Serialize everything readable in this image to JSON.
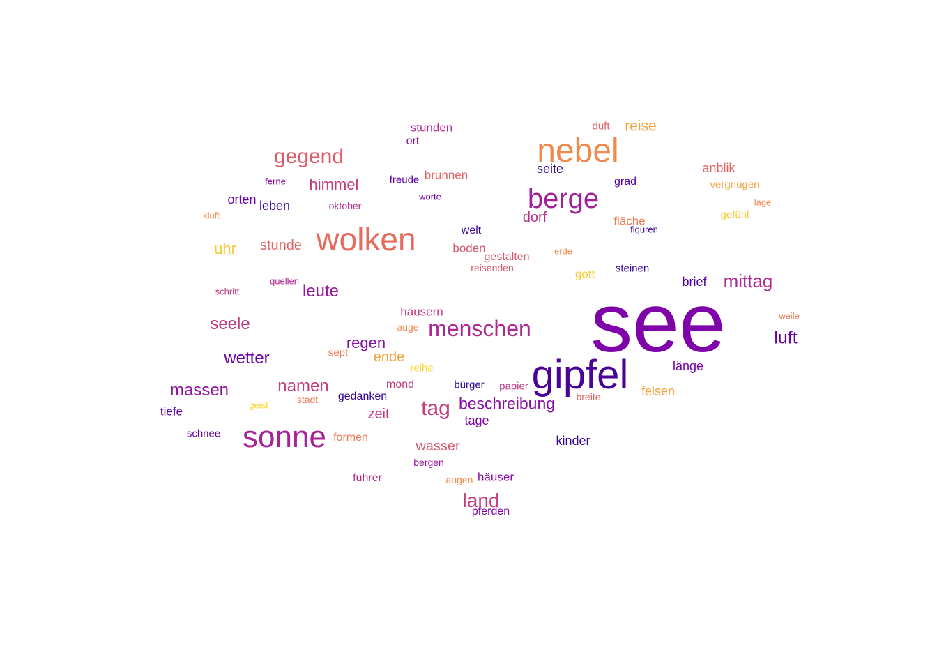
{
  "word_cloud": {
    "words": [
      {
        "text": "see",
        "color": "#7e03a8"
      },
      {
        "text": "gipfel",
        "color": "#4a0299"
      },
      {
        "text": "nebel",
        "color": "#ef8a4f"
      },
      {
        "text": "wolken",
        "color": "#e56b5d"
      },
      {
        "text": "sonne",
        "color": "#a62297"
      },
      {
        "text": "berge",
        "color": "#a21f9a"
      },
      {
        "text": "menschen",
        "color": "#ae2891"
      },
      {
        "text": "gegend",
        "color": "#dc5b67"
      },
      {
        "text": "tag",
        "color": "#c43e7f"
      },
      {
        "text": "beschreibung",
        "color": "#8a0da4"
      },
      {
        "text": "mittag",
        "color": "#b12a90"
      },
      {
        "text": "land",
        "color": "#c43e7f"
      },
      {
        "text": "luft",
        "color": "#6a00a8"
      },
      {
        "text": "massen",
        "color": "#9512a1"
      },
      {
        "text": "wetter",
        "color": "#6a00a8"
      },
      {
        "text": "seele",
        "color": "#c03a83"
      },
      {
        "text": "namen",
        "color": "#c73e7c"
      },
      {
        "text": "himmel",
        "color": "#c63d7d"
      },
      {
        "text": "leute",
        "color": "#9c179e"
      },
      {
        "text": "stunde",
        "color": "#e06363"
      },
      {
        "text": "uhr",
        "color": "#f9c934"
      },
      {
        "text": "regen",
        "color": "#8a0da4"
      },
      {
        "text": "reise",
        "color": "#f7a13a"
      },
      {
        "text": "wasser",
        "color": "#d7566c"
      },
      {
        "text": "zeit",
        "color": "#c03a83"
      },
      {
        "text": "ende",
        "color": "#f5a03a"
      },
      {
        "text": "dorf",
        "color": "#b52f8c"
      },
      {
        "text": "anblik",
        "color": "#e06363"
      },
      {
        "text": "länge",
        "color": "#7301a8"
      },
      {
        "text": "felsen",
        "color": "#f7a13a"
      },
      {
        "text": "tage",
        "color": "#7e03a8"
      },
      {
        "text": "kinder",
        "color": "#350498"
      },
      {
        "text": "brief",
        "color": "#4c02a1"
      },
      {
        "text": "seite",
        "color": "#2a0593"
      },
      {
        "text": "boden",
        "color": "#d7566c"
      },
      {
        "text": "stunden",
        "color": "#b12a90"
      },
      {
        "text": "brunnen",
        "color": "#e06363"
      },
      {
        "text": "orten",
        "color": "#6a00a8"
      },
      {
        "text": "leben",
        "color": "#3a049a"
      },
      {
        "text": "häusern",
        "color": "#c03a83"
      },
      {
        "text": "häuser",
        "color": "#8b0aa5"
      },
      {
        "text": "gott",
        "color": "#f9c934"
      },
      {
        "text": "gedanken",
        "color": "#350498"
      },
      {
        "text": "mond",
        "color": "#c03a83"
      },
      {
        "text": "fläche",
        "color": "#ed7953"
      },
      {
        "text": "grad",
        "color": "#5302a3"
      },
      {
        "text": "tiefe",
        "color": "#5c01a6"
      },
      {
        "text": "formen",
        "color": "#ed7953"
      },
      {
        "text": "führer",
        "color": "#b52f8c"
      },
      {
        "text": "pferden",
        "color": "#7e03a8"
      },
      {
        "text": "welt",
        "color": "#3a049a"
      },
      {
        "text": "steinen",
        "color": "#350498"
      },
      {
        "text": "gestalten",
        "color": "#d7566c"
      },
      {
        "text": "vergnügen",
        "color": "#f7a13a"
      },
      {
        "text": "gefühl",
        "color": "#f9c934"
      },
      {
        "text": "ort",
        "color": "#8b0aa5"
      },
      {
        "text": "freude",
        "color": "#5c01a6"
      },
      {
        "text": "sept",
        "color": "#ed7953"
      },
      {
        "text": "reihe",
        "color": "#f9d72c"
      },
      {
        "text": "duft",
        "color": "#e06363"
      },
      {
        "text": "schnee",
        "color": "#6a00a8"
      },
      {
        "text": "bürger",
        "color": "#2a0593"
      },
      {
        "text": "papier",
        "color": "#c03a83"
      },
      {
        "text": "auge",
        "color": "#f3894c"
      },
      {
        "text": "oktober",
        "color": "#b12a90"
      },
      {
        "text": "ferne",
        "color": "#8b0aa5"
      },
      {
        "text": "worte",
        "color": "#6a00a8"
      },
      {
        "text": "figuren",
        "color": "#350498"
      },
      {
        "text": "bergen",
        "color": "#9c179e"
      },
      {
        "text": "quellen",
        "color": "#b12a90"
      },
      {
        "text": "schritt",
        "color": "#c03a83"
      },
      {
        "text": "reisenden",
        "color": "#d7566c"
      },
      {
        "text": "stadt",
        "color": "#ed7953"
      },
      {
        "text": "breite",
        "color": "#e06363"
      },
      {
        "text": "augen",
        "color": "#f3894c"
      },
      {
        "text": "geist",
        "color": "#f9d72c"
      },
      {
        "text": "erde",
        "color": "#f3894c"
      },
      {
        "text": "lage",
        "color": "#f3894c"
      },
      {
        "text": "kluft",
        "color": "#f3894c"
      },
      {
        "text": "weile",
        "color": "#ed7953"
      }
    ]
  }
}
